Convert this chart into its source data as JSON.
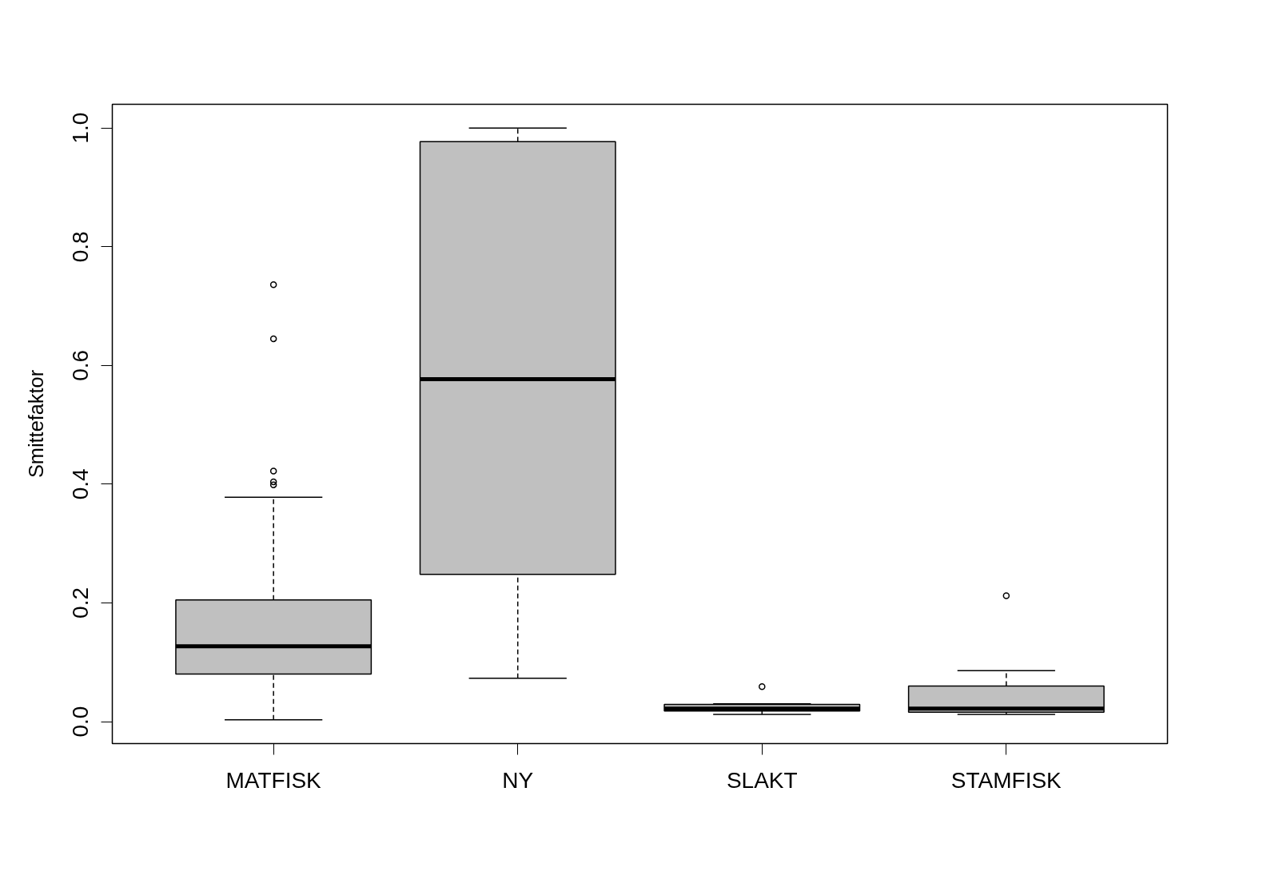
{
  "chart_data": {
    "type": "box",
    "ylabel": "Smittefaktor",
    "categories": [
      "MATFISK",
      "NY",
      "SLAKT",
      "STAMFISK"
    ],
    "color": "#c0c0c0",
    "boxes": [
      {
        "low": 0.003,
        "q1": 0.08,
        "median": 0.127,
        "q3": 0.205,
        "high": 0.378,
        "outliers": [
          0.736,
          0.645,
          0.422,
          0.404,
          0.399
        ]
      },
      {
        "low": 0.073,
        "q1": 0.248,
        "median": 0.577,
        "q3": 0.977,
        "high": 1.0
      },
      {
        "low": 0.012,
        "q1": 0.018,
        "median": 0.022,
        "q3": 0.029,
        "high": 0.03,
        "outliers": [
          0.059
        ]
      },
      {
        "low": 0.012,
        "q1": 0.016,
        "median": 0.022,
        "q3": 0.06,
        "high": 0.086,
        "outliers": [
          0.212
        ]
      }
    ],
    "ylim": [
      -0.037,
      1.04
    ],
    "yticks": [
      {
        "value": 0,
        "label": "0.0"
      },
      {
        "value": 0.2,
        "label": "0.2"
      },
      {
        "value": 0.4,
        "label": "0.4"
      },
      {
        "value": 0.6,
        "label": "0.6"
      },
      {
        "value": 0.8,
        "label": "0.8"
      },
      {
        "value": 1,
        "label": "1.0"
      }
    ],
    "grid": false
  }
}
